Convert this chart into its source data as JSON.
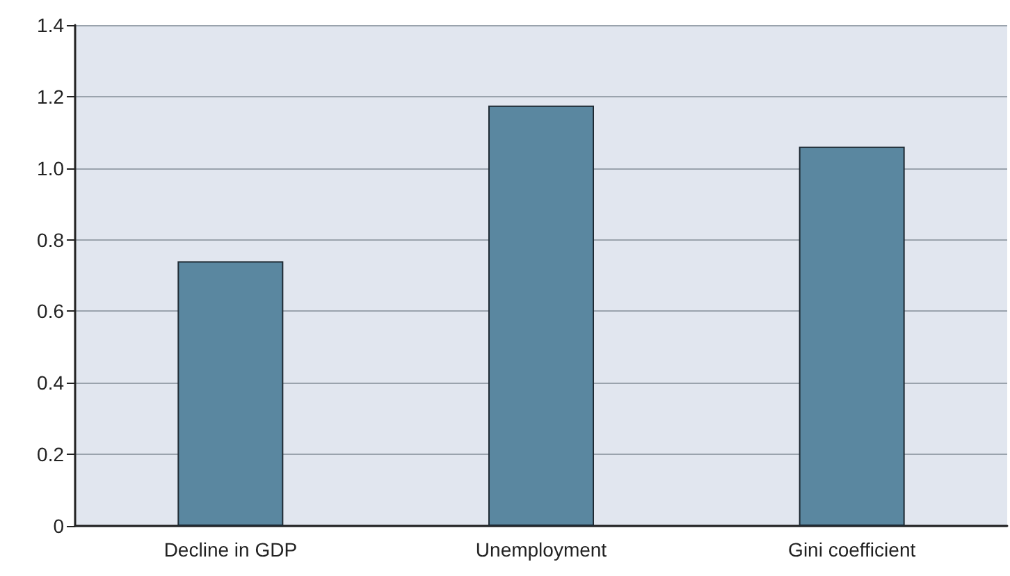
{
  "chart_data": {
    "type": "bar",
    "categories": [
      "Decline in GDP",
      "Unemployment",
      "Gini coefficient"
    ],
    "values": [
      0.74,
      1.175,
      1.06
    ],
    "color": "#5a87a0",
    "ylim": [
      0,
      1.4
    ],
    "yticks": [
      0,
      0.2,
      0.4,
      0.6,
      0.8,
      {
        "value": 1,
        "label": "1.0"
      },
      1.2,
      1.4
    ],
    "grid": "y"
  }
}
